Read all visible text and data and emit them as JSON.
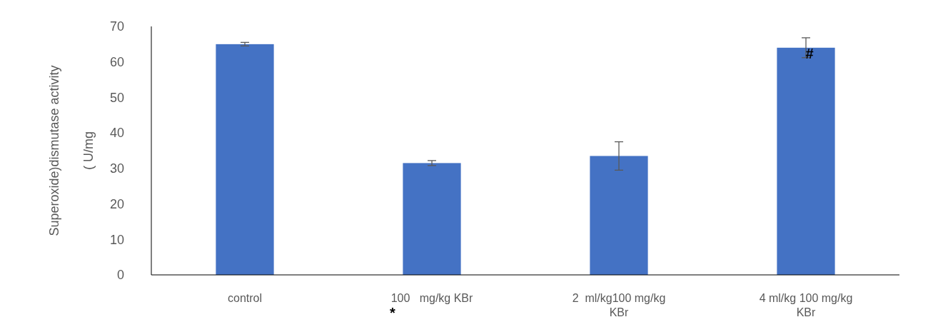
{
  "chart_data": {
    "type": "bar",
    "ylabel": "Superoxide)dismutase activity\n( U/mg",
    "categories": [
      "control",
      "100   mg/kg KBr",
      "2  ml/kg100 mg/kg KBr",
      "4 ml/kg 100 mg/kg KBr"
    ],
    "values": [
      65,
      31.5,
      33.5,
      64
    ],
    "errors": [
      0.5,
      0.7,
      4,
      2.8
    ],
    "color": "#4472c4",
    "ylim": [
      0,
      70
    ],
    "yticks": [
      0,
      10,
      20,
      30,
      40,
      50,
      60,
      70
    ],
    "grid": false,
    "annotations": [
      "*",
      {
        "text": "#",
        "x": "4 ml/kg 100 mg/kg KBr",
        "y": 61
      }
    ]
  }
}
